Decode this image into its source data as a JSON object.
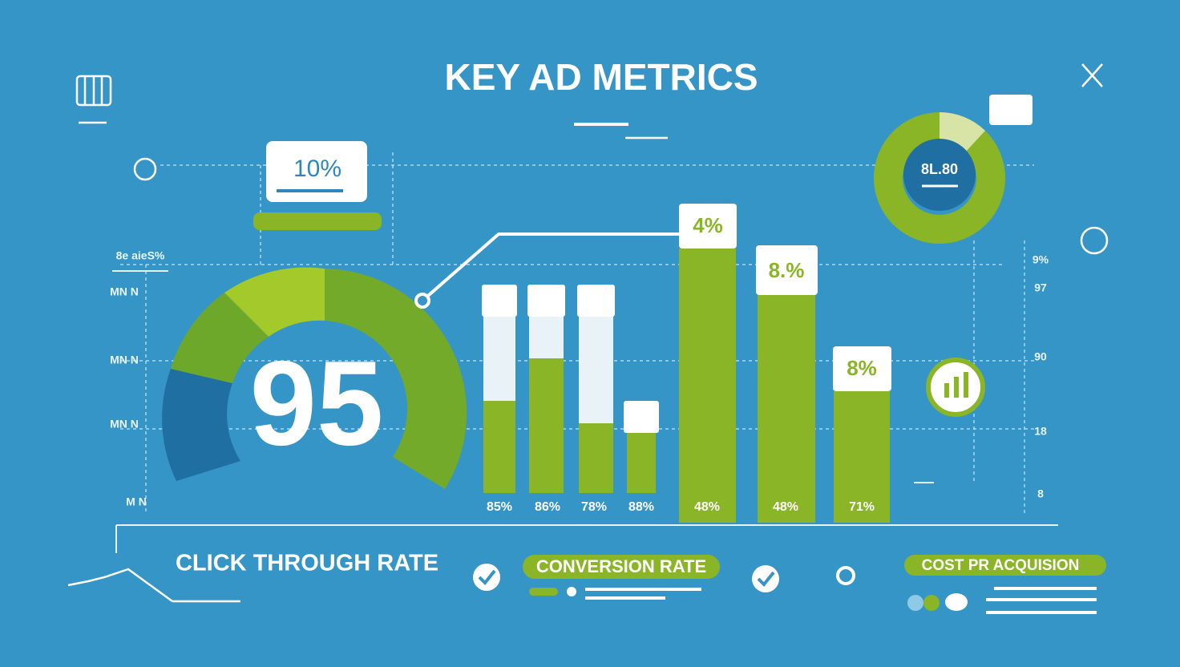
{
  "title": "KEY AD METRICS",
  "gauge_value": "95",
  "callouts": [
    "10%",
    "4%",
    "8.%",
    "8%"
  ],
  "donut_label": "8L.80",
  "left_labels": [
    "8e aieS%",
    "MN N",
    "MN N",
    "MN N",
    "M N"
  ],
  "right_labels": [
    "9%",
    "97",
    "90",
    "18",
    "8"
  ],
  "bar_labels": [
    "85%",
    "86%",
    "78%",
    "88%",
    "48%",
    "48%",
    "71%"
  ],
  "sections": [
    "CLICK THROUGH RATE",
    "CONVERSION RATE",
    "COST PR ACQUISION"
  ]
}
